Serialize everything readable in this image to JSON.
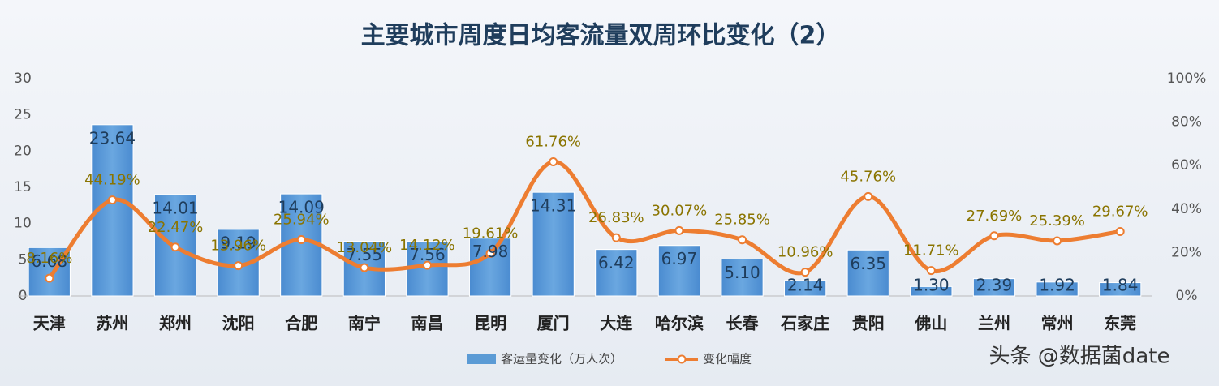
{
  "chart_data": {
    "type": "bar_line",
    "title": "主要城市周度日均客流量双周环比变化（2）",
    "categories": [
      "天津",
      "苏州",
      "郑州",
      "沈阳",
      "合肥",
      "南宁",
      "南昌",
      "昆明",
      "厦门",
      "大连",
      "哈尔滨",
      "长春",
      "石家庄",
      "贵阳",
      "佛山",
      "兰州",
      "常州",
      "东莞"
    ],
    "series": [
      {
        "name": "客运量变化（万人次）",
        "color": "#5b9bd5",
        "type": "bar",
        "values": [
          6.68,
          23.64,
          14.01,
          9.19,
          14.09,
          7.55,
          7.56,
          7.98,
          14.31,
          6.42,
          6.97,
          5.1,
          2.14,
          6.35,
          1.3,
          2.39,
          1.92,
          1.84
        ],
        "value_labels": [
          "6.68",
          "23.64",
          "14.01",
          "9.19",
          "14.09",
          "7.55",
          "7.56",
          "7.98",
          "14.31",
          "6.42",
          "6.97",
          "5.10",
          "2.14",
          "6.35",
          "1.30",
          "2.39",
          "1.92",
          "1.84"
        ]
      },
      {
        "name": "变化幅度",
        "color": "#ed7d31",
        "type": "line",
        "axis": "y2",
        "values": [
          8.16,
          44.19,
          22.47,
          13.96,
          25.94,
          13.04,
          14.12,
          19.61,
          61.76,
          26.83,
          30.07,
          25.85,
          10.96,
          45.76,
          11.71,
          27.69,
          25.39,
          29.67
        ],
        "value_labels": [
          "8.16%",
          "44.19%",
          "22.47%",
          "13.96%",
          "25.94%",
          "13.04%",
          "14.12%",
          "19.61%",
          "61.76%",
          "26.83%",
          "30.07%",
          "25.85%",
          "10.96%",
          "45.76%",
          "11.71%",
          "27.69%",
          "25.39%",
          "29.67%"
        ]
      }
    ],
    "ylim": [
      0,
      30
    ],
    "yticks": [
      0,
      5,
      10,
      15,
      20,
      25,
      30
    ],
    "y2lim": [
      0,
      100
    ],
    "y2ticks": [
      {
        "value": 0,
        "label": "0%"
      },
      {
        "value": 20,
        "label": "20%"
      },
      {
        "value": 40,
        "label": "40%"
      },
      {
        "value": 60,
        "label": "60%"
      },
      {
        "value": 80,
        "label": "80%"
      },
      {
        "value": 100,
        "label": "100%"
      }
    ],
    "legend": "bottom"
  },
  "watermark": "头条 @数据菌date"
}
